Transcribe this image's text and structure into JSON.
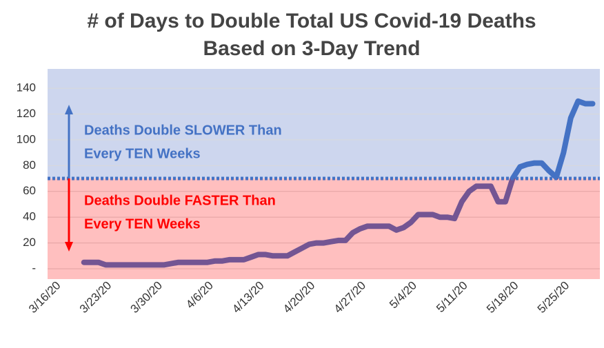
{
  "chart_data": {
    "type": "line",
    "title": [
      "# of Days to Double Total US Covid-19 Deaths",
      "Based on  3-Day Trend"
    ],
    "annotations": [
      {
        "text": [
          "Deaths Double SLOWER Than",
          "Every TEN Weeks"
        ],
        "color": "#4472c4"
      },
      {
        "text": [
          "Deaths Double FASTER Than",
          "Every TEN Weeks"
        ],
        "color": "#ff0000"
      }
    ],
    "threshold": 70,
    "x": [
      "3/20/20",
      "3/21/20",
      "3/22/20",
      "3/23/20",
      "3/24/20",
      "3/25/20",
      "3/26/20",
      "3/27/20",
      "3/28/20",
      "3/29/20",
      "3/30/20",
      "3/31/20",
      "4/1/20",
      "4/2/20",
      "4/3/20",
      "4/4/20",
      "4/5/20",
      "4/6/20",
      "4/7/20",
      "4/8/20",
      "4/9/20",
      "4/10/20",
      "4/11/20",
      "4/12/20",
      "4/13/20",
      "4/14/20",
      "4/15/20",
      "4/16/20",
      "4/17/20",
      "4/18/20",
      "4/19/20",
      "4/20/20",
      "4/21/20",
      "4/22/20",
      "4/23/20",
      "4/24/20",
      "4/25/20",
      "4/26/20",
      "4/27/20",
      "4/28/20",
      "4/29/20",
      "4/30/20",
      "5/1/20",
      "5/2/20",
      "5/3/20",
      "5/4/20",
      "5/5/20",
      "5/6/20",
      "5/7/20",
      "5/8/20",
      "5/9/20",
      "5/10/20",
      "5/11/20",
      "5/12/20",
      "5/13/20",
      "5/14/20",
      "5/15/20",
      "5/16/20",
      "5/17/20",
      "5/18/20",
      "5/19/20",
      "5/20/20",
      "5/21/20",
      "5/22/20",
      "5/23/20",
      "5/24/20",
      "5/25/20",
      "5/26/20",
      "5/27/20",
      "5/28/20",
      "5/29/20"
    ],
    "series": [
      {
        "color": "#4472c4",
        "values": [
          5,
          5,
          5,
          3,
          3,
          3,
          3,
          3,
          3,
          3,
          3,
          3,
          4,
          5,
          5,
          5,
          5,
          5,
          6,
          6,
          7,
          7,
          7,
          9,
          11,
          11,
          10,
          10,
          10,
          13,
          16,
          19,
          20,
          20,
          21,
          22,
          22,
          28,
          31,
          33,
          33,
          33,
          33,
          30,
          32,
          36,
          42,
          42,
          42,
          40,
          40,
          39,
          52,
          60,
          64,
          64,
          64,
          52,
          52,
          70,
          79,
          81,
          82,
          82,
          76,
          71,
          90,
          117,
          130,
          128,
          128
        ]
      }
    ],
    "xlim": [
      "3/15/20",
      "5/30/20"
    ],
    "xticks": [
      "3/16/20",
      "3/23/20",
      "3/30/20",
      "4/6/20",
      "4/13/20",
      "4/20/20",
      "4/27/20",
      "5/4/20",
      "5/11/20",
      "5/18/20",
      "5/25/20"
    ],
    "ylim": [
      -8,
      155
    ],
    "yticks": [
      {
        "value": 0,
        "label": "-"
      },
      20,
      40,
      60,
      80,
      100,
      120,
      140
    ],
    "grid": true
  }
}
